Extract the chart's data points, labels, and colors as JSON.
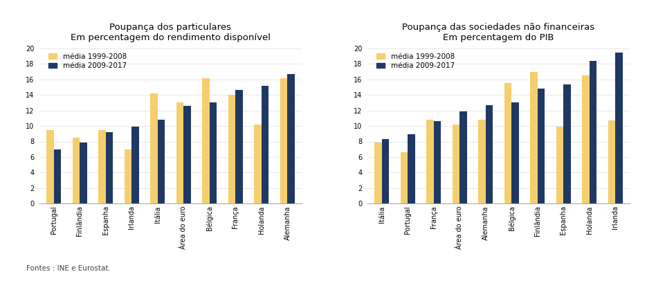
{
  "chart1": {
    "title": "Poupança dos particulares\nEm percentagem do rendimento disponível",
    "categories": [
      "Portugal",
      "Finlândia",
      "Espanha",
      "Irlanda",
      "Itália",
      "Área do euro",
      "Bélgica",
      "França",
      "Holanda",
      "Alemanha"
    ],
    "values_1999_2008": [
      9.5,
      8.5,
      9.5,
      7.0,
      14.2,
      13.0,
      16.1,
      14.0,
      10.2,
      16.1
    ],
    "values_2009_2017": [
      7.0,
      7.9,
      9.2,
      9.9,
      10.8,
      12.6,
      13.0,
      14.6,
      15.2,
      16.7
    ],
    "ylim": [
      0,
      20
    ],
    "yticks": [
      0,
      2,
      4,
      6,
      8,
      10,
      12,
      14,
      16,
      18,
      20
    ]
  },
  "chart2": {
    "title": "Poupança das sociedades não financeiras\nEm percentagem do PIB",
    "categories": [
      "Itália",
      "Portugal",
      "França",
      "Área do euro",
      "Alemanha",
      "Bélgica",
      "Finlândia",
      "Espanha",
      "Holanda",
      "Irlanda"
    ],
    "values_1999_2008": [
      7.9,
      6.6,
      10.8,
      10.2,
      10.8,
      15.5,
      16.9,
      9.9,
      16.5,
      10.7
    ],
    "values_2009_2017": [
      8.3,
      8.9,
      10.6,
      11.9,
      12.7,
      13.0,
      14.8,
      15.3,
      18.4,
      19.4
    ],
    "ylim": [
      0,
      20
    ],
    "yticks": [
      0,
      2,
      4,
      6,
      8,
      10,
      12,
      14,
      16,
      18,
      20
    ]
  },
  "color_1999_2008": "#F5CE6E",
  "color_2009_2017": "#1F3864",
  "legend_label_1": "média 1999-2008",
  "legend_label_2": "média 2009-2017",
  "footnote": "Fontes : INE e Eurostat.",
  "title_fontsize": 9.5,
  "tick_fontsize": 7,
  "legend_fontsize": 7.5,
  "footnote_fontsize": 7.5,
  "bar_width": 0.28
}
